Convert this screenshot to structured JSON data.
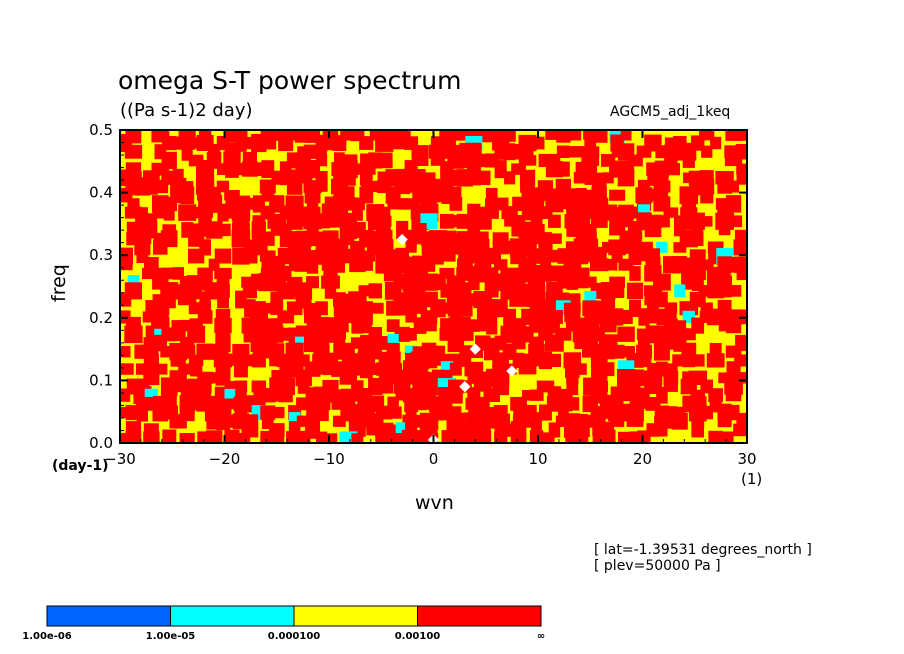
{
  "figure": {
    "title": "omega S-T power spectrum",
    "units": "((Pa s-1)2 day)",
    "run_name": "AGCM5_adj_1keq",
    "xlabel": "wvn",
    "ylabel": "freq",
    "x_unit_left": "(day-1)",
    "x_unit_right": "(1)",
    "info_lat": "[ lat=-1.39531 degrees_north ]",
    "info_plev": "[ plev=50000 Pa ]"
  },
  "colors": {
    "level_1": "#0066ff",
    "level_2": "#00ffff",
    "level_3": "#ffff00",
    "level_4": "#ff0000",
    "missing": "#ffffff"
  },
  "chart_data": {
    "type": "heatmap",
    "title": "omega S-T power spectrum",
    "subtitle": "((Pa s-1)2 day)",
    "xlabel": "wvn",
    "ylabel": "freq",
    "xlim": [
      -30,
      30
    ],
    "ylim": [
      0.0,
      0.5
    ],
    "x_ticks": [
      -30,
      -20,
      -10,
      0,
      10,
      20,
      30
    ],
    "x_tick_labels": [
      "−30",
      "−20",
      "−10",
      "0",
      "10",
      "20",
      "30"
    ],
    "y_ticks": [
      0.0,
      0.1,
      0.2,
      0.3,
      0.4,
      0.5
    ],
    "y_tick_labels": [
      "0.0",
      "0.1",
      "0.2",
      "0.3",
      "0.4",
      "0.5"
    ],
    "contour_levels": [
      1e-06,
      1e-05,
      0.0001,
      0.001
    ],
    "colorbar": {
      "labels": [
        "1.00e-06",
        "1.00e-05",
        "0.000100",
        "0.00100",
        "∞"
      ],
      "colors": [
        "#0066ff",
        "#00ffff",
        "#ffff00",
        "#ff0000"
      ]
    },
    "dominant_classes": [
      "0.000100–0.00100",
      "≥0.00100"
    ],
    "grid": false,
    "legend": "bottom-left colorbar"
  }
}
